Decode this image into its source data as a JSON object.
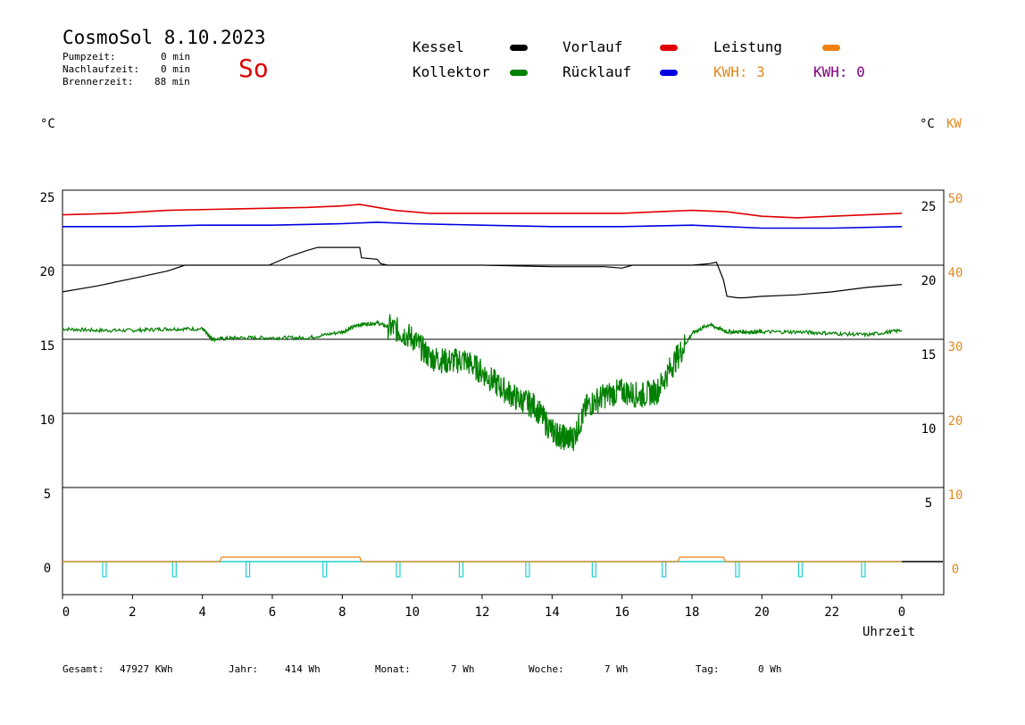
{
  "header": {
    "title": "CosmoSol 8.10.2023",
    "day": "So",
    "stats": [
      {
        "label": "Pumpzeit:",
        "value": "0 min"
      },
      {
        "label": "Nachlaufzeit:",
        "value": "0 min"
      },
      {
        "label": "Brennerzeit:",
        "value": "88 min"
      }
    ]
  },
  "legend": {
    "kessel": "Kessel",
    "kollektor": "Kollektor",
    "vorlauf": "Vorlauf",
    "ruecklauf": "Rücklauf",
    "leistung": "Leistung",
    "kwh1": "KWH: 3",
    "kwh2": "KWH: 0",
    "colors": {
      "kessel": "#000000",
      "kollektor": "#008000",
      "vorlauf": "#e00000",
      "ruecklauf": "#0000e0",
      "leistung": "#f08010",
      "pump": "#20d0d0"
    }
  },
  "axes": {
    "left_unit": "°C",
    "right_unit": "°C",
    "right_unit2": "KW",
    "xlabel": "Uhrzeit"
  },
  "footer": {
    "gesamt_label": "Gesamt:",
    "gesamt_value": "47927 KWh",
    "jahr_label": "Jahr:",
    "jahr_value": "414 Wh",
    "monat_label": "Monat:",
    "monat_value": "7 Wh",
    "woche_label": "Woche:",
    "woche_value": "7 Wh",
    "tag_label": "Tag:",
    "tag_value": "0 Wh"
  },
  "chart_data": {
    "type": "line",
    "xlim": [
      0,
      24
    ],
    "ylim": [
      -2,
      25
    ],
    "x_ticks": [
      "0",
      "2",
      "4",
      "6",
      "8",
      "10",
      "12",
      "14",
      "16",
      "18",
      "20",
      "22",
      "0"
    ],
    "y_ticks_left": [
      "25",
      "20",
      "15",
      "10",
      "5",
      "0"
    ],
    "y_ticks_right_lower": [
      "5",
      "10",
      "15",
      "20",
      "25"
    ],
    "y_ticks_right_upper": [
      "0",
      "10",
      "20",
      "30",
      "40",
      "50"
    ],
    "grid": true,
    "series": [
      {
        "name": "Vorlauf",
        "color": "#e00000",
        "x": [
          0,
          1.5,
          3,
          5,
          7,
          8,
          8.5,
          9,
          9.5,
          10.5,
          12,
          14,
          16,
          17,
          18,
          19,
          20,
          21,
          22,
          23,
          24
        ],
        "y": [
          23.4,
          23.5,
          23.7,
          23.8,
          23.9,
          24,
          24.1,
          23.9,
          23.7,
          23.5,
          23.5,
          23.5,
          23.5,
          23.6,
          23.7,
          23.6,
          23.3,
          23.2,
          23.3,
          23.4,
          23.5
        ]
      },
      {
        "name": "Rücklauf",
        "color": "#0000e0",
        "x": [
          0,
          2,
          4,
          6,
          8,
          9,
          10,
          12,
          14,
          16,
          18,
          20,
          22,
          24
        ],
        "y": [
          22.6,
          22.6,
          22.7,
          22.7,
          22.8,
          22.9,
          22.8,
          22.7,
          22.6,
          22.6,
          22.7,
          22.5,
          22.5,
          22.6
        ]
      },
      {
        "name": "Kessel",
        "color": "#000000",
        "x": [
          0,
          1,
          2,
          3,
          3.5,
          4,
          5,
          5.9,
          6.5,
          7,
          7.3,
          8,
          8.5,
          8.55,
          9,
          9.1,
          9.3,
          10,
          12,
          14,
          15.5,
          16,
          16.3,
          18,
          18.5,
          18.7,
          18.9,
          19,
          19.3,
          19.5,
          20,
          21,
          22,
          23,
          24
        ],
        "y": [
          18.2,
          18.6,
          19.1,
          19.6,
          20,
          20,
          20,
          20,
          20.6,
          21,
          21.2,
          21.2,
          21.2,
          20.5,
          20.4,
          20.1,
          20,
          20,
          20,
          19.9,
          19.9,
          19.8,
          20,
          20,
          20.1,
          20.2,
          19,
          17.9,
          17.8,
          17.8,
          17.9,
          18,
          18.2,
          18.5,
          18.7
        ]
      },
      {
        "name": "Kollektor",
        "color": "#008000",
        "x": [
          0,
          1,
          2,
          3,
          4,
          4.2,
          4.3,
          5,
          6,
          7,
          8,
          8.5,
          9,
          9.5,
          10,
          10.5,
          11,
          11.5,
          12,
          12.5,
          13,
          13.5,
          14,
          14.3,
          14.6,
          15,
          15.5,
          16,
          16.5,
          17,
          17.5,
          18,
          18.5,
          19,
          19.5,
          20,
          21,
          22,
          23,
          24
        ],
        "y": [
          15.7,
          15.6,
          15.6,
          15.7,
          15.7,
          15.2,
          15,
          15.1,
          15.1,
          15.1,
          15.5,
          16,
          16.1,
          15.7,
          15.1,
          13.8,
          13.5,
          13.6,
          12.8,
          11.8,
          11,
          10.5,
          8.8,
          8.4,
          8.3,
          10.5,
          11.2,
          11.5,
          11.2,
          11.5,
          13.5,
          15.4,
          16,
          15.5,
          15.5,
          15.5,
          15.5,
          15.4,
          15.3,
          15.6
        ]
      },
      {
        "name": "Leistung",
        "color": "#f08010",
        "x": [
          0,
          4.5,
          4.55,
          8.5,
          8.55,
          17.6,
          17.65,
          18.9,
          18.95,
          24
        ],
        "y": [
          0,
          0,
          0.3,
          0.3,
          0,
          0,
          0.3,
          0.3,
          0,
          0
        ]
      }
    ],
    "pump_marks_x": [
      1.2,
      3.2,
      5.3,
      7.5,
      9.6,
      11.4,
      13.3,
      15.2,
      17.2,
      19.3,
      21.1,
      22.9
    ]
  }
}
